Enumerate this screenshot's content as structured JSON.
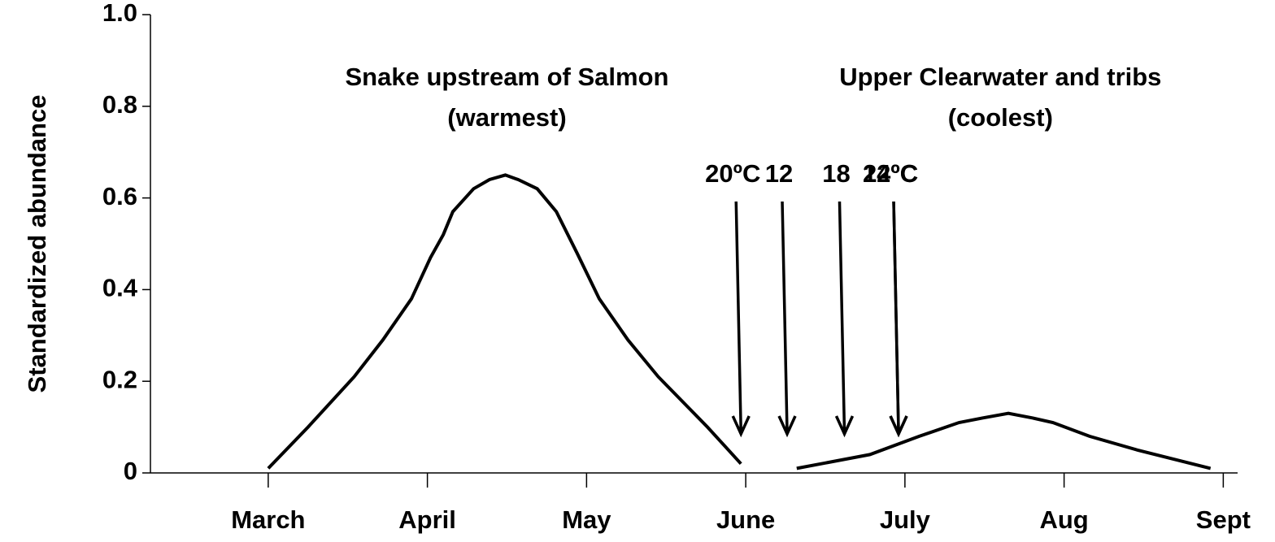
{
  "chart_data": {
    "type": "line",
    "ylabel": "Standardized abundance",
    "xlim": [
      -0.74,
      6.09
    ],
    "xticks": [
      {
        "value": 0,
        "label": "March"
      },
      {
        "value": 1,
        "label": "April"
      },
      {
        "value": 2,
        "label": "May"
      },
      {
        "value": 3,
        "label": "June"
      },
      {
        "value": 4,
        "label": "July"
      },
      {
        "value": 5,
        "label": "Aug"
      },
      {
        "value": 6,
        "label": "Sept"
      }
    ],
    "ylim": [
      0,
      1.0
    ],
    "yticks": [
      0,
      0.2,
      0.4,
      0.6,
      0.8,
      {
        "value": 1.0,
        "label": "1.0"
      }
    ],
    "series": [
      {
        "name": "Snake upstream of Salmon (warmest)",
        "color": "#000000",
        "x": [
          0,
          0.25,
          0.54,
          0.72,
          0.9,
          1.02,
          1.1,
          1.16,
          1.29,
          1.39,
          1.49,
          1.57,
          1.69,
          1.81,
          1.94,
          2.08,
          2.26,
          2.45,
          2.76,
          2.97
        ],
        "values": [
          0.01,
          0.1,
          0.21,
          0.29,
          0.38,
          0.47,
          0.52,
          0.57,
          0.62,
          0.64,
          0.65,
          0.64,
          0.62,
          0.57,
          0.48,
          0.38,
          0.29,
          0.21,
          0.1,
          0.02
        ]
      },
      {
        "name": "Upper Clearwater and tribs (coolest)",
        "color": "#000000",
        "x": [
          3.32,
          3.78,
          4.09,
          4.34,
          4.49,
          4.65,
          4.8,
          4.93,
          5.16,
          5.46,
          5.92
        ],
        "values": [
          0.01,
          0.04,
          0.08,
          0.11,
          0.12,
          0.13,
          0.12,
          0.11,
          0.08,
          0.05,
          0.01
        ]
      }
    ],
    "annotations": [
      {
        "lines": [
          "Snake upstream of Salmon",
          "(warmest)"
        ],
        "x": 1.5,
        "y": 0.86
      },
      {
        "lines": [
          "Upper Clearwater and tribs",
          "(coolest)"
        ],
        "x": 4.6,
        "y": 0.86
      }
    ],
    "arrows": [
      {
        "label": "20ºC",
        "x": 2.97
      },
      {
        "label": "12",
        "x": 3.26
      },
      {
        "label": "18",
        "x": 3.62
      },
      {
        "label": "14ºC",
        "x": 3.96
      },
      {
        "label": "22ºC",
        "x": 3.96
      }
    ]
  }
}
